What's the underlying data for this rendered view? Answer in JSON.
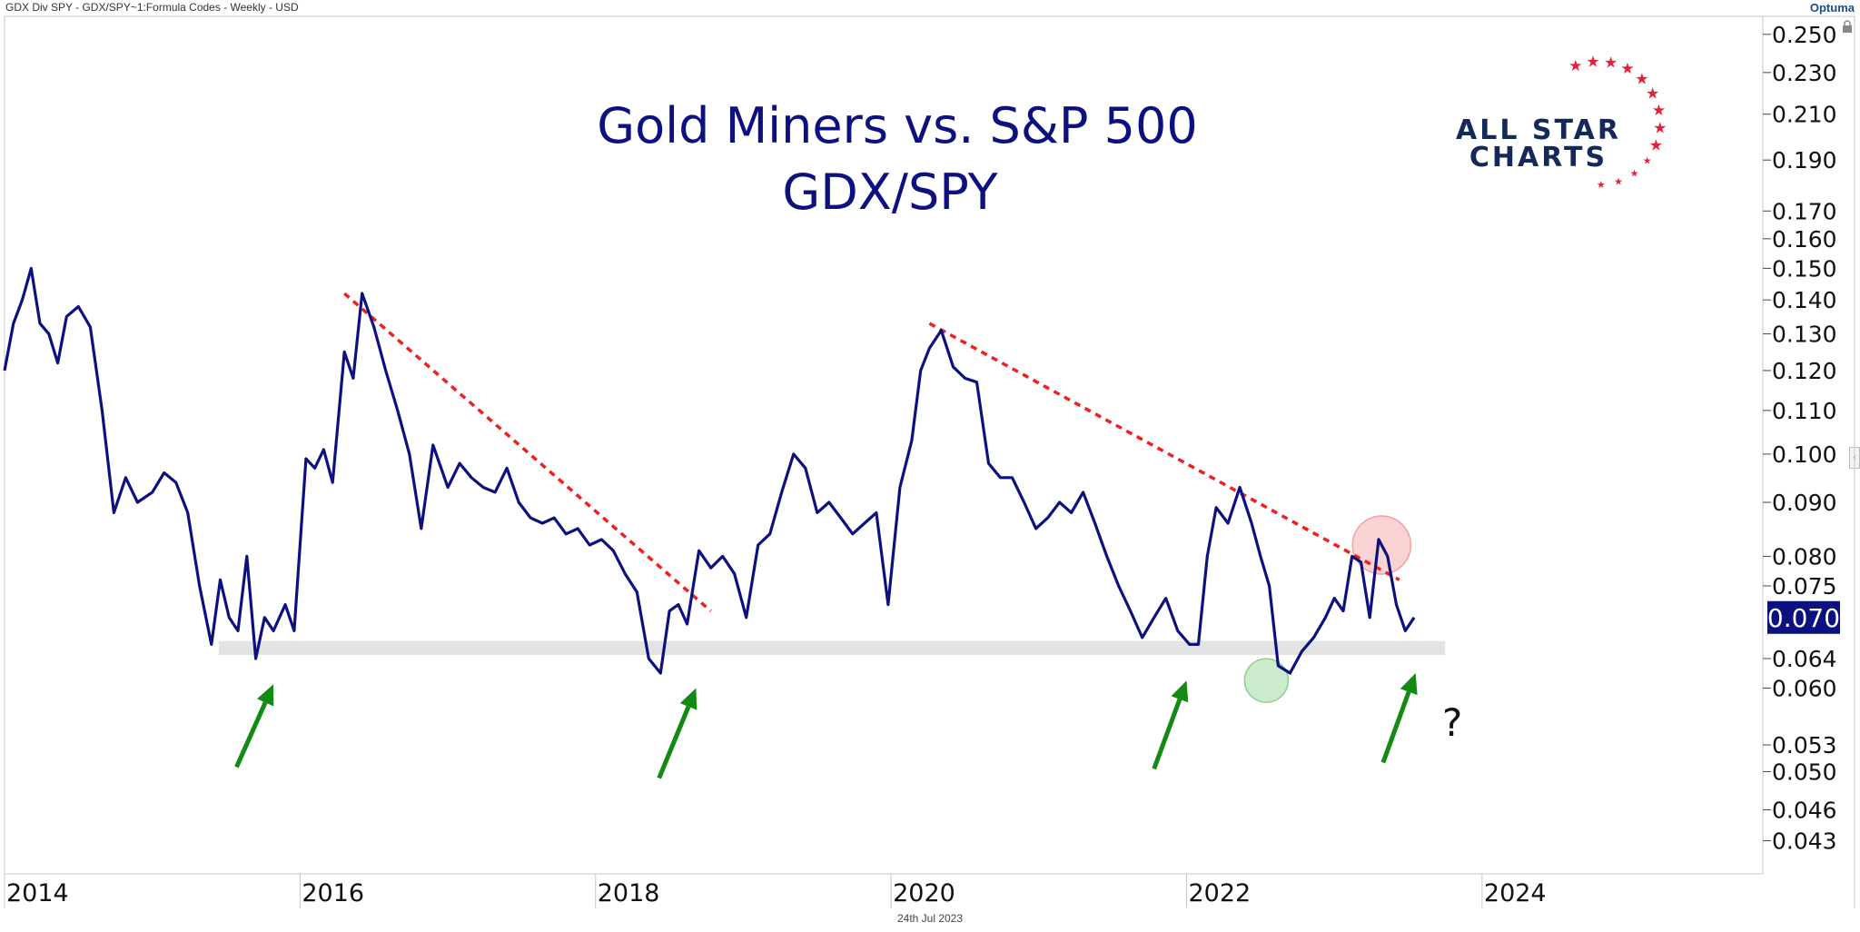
{
  "header": {
    "symbol_info": "GDX Div SPY - GDX/SPY~1:Formula Codes - Weekly - USD",
    "brand": "Optuma"
  },
  "footer": {
    "date": "24th Jul 2023"
  },
  "logo": {
    "line1": "ALL STAR",
    "line2": "CHARTS"
  },
  "annotation": {
    "question": "?"
  },
  "chart_data": {
    "type": "line",
    "title": "Gold Miners vs. S&P 500",
    "subtitle": "GDX/SPY",
    "yscale": "log",
    "ylim": [
      0.04,
      0.26
    ],
    "xlim": [
      2014.0,
      2025.9
    ],
    "y_ticks": [
      "0.250",
      "0.230",
      "0.210",
      "0.190",
      "0.170",
      "0.160",
      "0.150",
      "0.140",
      "0.130",
      "0.120",
      "0.110",
      "0.100",
      "0.090",
      "0.080",
      "0.075",
      "0.064",
      "0.060",
      "0.053",
      "0.050",
      "0.046",
      "0.043"
    ],
    "x_ticks": [
      "2014",
      "2016",
      "2018",
      "2020",
      "2022",
      "2024"
    ],
    "last_value": "0.070",
    "colors": {
      "line": "#0d1180",
      "trendline": "#f02020",
      "arrow": "#138a13",
      "support": "#e3e3e3",
      "last_value_bg": "#0d1180"
    },
    "series": [
      {
        "x": [
          2014.0,
          2014.06,
          2014.12,
          2014.18,
          2014.24,
          2014.3,
          2014.36,
          2014.42,
          2014.5,
          2014.58,
          2014.66,
          2014.74,
          2014.82,
          2014.9,
          2015.0,
          2015.08,
          2015.16,
          2015.24,
          2015.32,
          2015.4,
          2015.46,
          2015.52,
          2015.58,
          2015.64,
          2015.7,
          2015.76,
          2015.82,
          2015.9,
          2015.96,
          2016.04,
          2016.1,
          2016.16,
          2016.22,
          2016.3,
          2016.36,
          2016.42,
          2016.5,
          2016.58,
          2016.66,
          2016.74,
          2016.82,
          2016.9,
          2017.0,
          2017.08,
          2017.16,
          2017.24,
          2017.32,
          2017.4,
          2017.48,
          2017.56,
          2017.64,
          2017.72,
          2017.8,
          2017.88,
          2017.96,
          2018.04,
          2018.12,
          2018.2,
          2018.28,
          2018.36,
          2018.44,
          2018.5,
          2018.56,
          2018.62,
          2018.7,
          2018.78,
          2018.86,
          2018.94,
          2019.02,
          2019.1,
          2019.18,
          2019.26,
          2019.34,
          2019.42,
          2019.5,
          2019.58,
          2019.66,
          2019.74,
          2019.82,
          2019.9,
          2019.98,
          2020.06,
          2020.14,
          2020.2,
          2020.26,
          2020.34,
          2020.42,
          2020.5,
          2020.58,
          2020.66,
          2020.74,
          2020.82,
          2020.9,
          2020.98,
          2021.06,
          2021.14,
          2021.22,
          2021.3,
          2021.38,
          2021.46,
          2021.54,
          2021.62,
          2021.7,
          2021.78,
          2021.86,
          2021.94,
          2022.02,
          2022.08,
          2022.14,
          2022.2,
          2022.28,
          2022.36,
          2022.44,
          2022.5,
          2022.56,
          2022.62,
          2022.7,
          2022.78,
          2022.86,
          2022.94,
          2023.0,
          2023.06,
          2023.12,
          2023.18,
          2023.24,
          2023.3,
          2023.36,
          2023.42,
          2023.48,
          2023.54
        ],
        "y": [
          0.12,
          0.133,
          0.14,
          0.15,
          0.133,
          0.13,
          0.122,
          0.135,
          0.138,
          0.132,
          0.11,
          0.088,
          0.095,
          0.09,
          0.092,
          0.096,
          0.094,
          0.088,
          0.075,
          0.066,
          0.076,
          0.07,
          0.068,
          0.08,
          0.064,
          0.07,
          0.068,
          0.072,
          0.068,
          0.099,
          0.097,
          0.101,
          0.094,
          0.125,
          0.118,
          0.142,
          0.132,
          0.12,
          0.11,
          0.1,
          0.085,
          0.102,
          0.093,
          0.098,
          0.095,
          0.093,
          0.092,
          0.097,
          0.09,
          0.087,
          0.086,
          0.087,
          0.084,
          0.085,
          0.082,
          0.083,
          0.081,
          0.077,
          0.074,
          0.064,
          0.062,
          0.071,
          0.072,
          0.069,
          0.081,
          0.078,
          0.08,
          0.077,
          0.07,
          0.082,
          0.084,
          0.092,
          0.1,
          0.097,
          0.088,
          0.09,
          0.087,
          0.084,
          0.086,
          0.088,
          0.072,
          0.093,
          0.103,
          0.12,
          0.126,
          0.131,
          0.121,
          0.118,
          0.117,
          0.098,
          0.095,
          0.095,
          0.09,
          0.085,
          0.087,
          0.09,
          0.088,
          0.092,
          0.086,
          0.08,
          0.075,
          0.071,
          0.067,
          0.07,
          0.073,
          0.068,
          0.066,
          0.066,
          0.08,
          0.089,
          0.086,
          0.093,
          0.086,
          0.08,
          0.075,
          0.063,
          0.062,
          0.065,
          0.067,
          0.07,
          0.073,
          0.071,
          0.08,
          0.079,
          0.07,
          0.083,
          0.08,
          0.072,
          0.068,
          0.07
        ]
      }
    ],
    "trendlines": [
      {
        "from": {
          "x": 2016.3,
          "y": 0.142
        },
        "to": {
          "x": 2018.78,
          "y": 0.071
        }
      },
      {
        "from": {
          "x": 2020.26,
          "y": 0.133
        },
        "to": {
          "x": 2023.44,
          "y": 0.076
        }
      }
    ],
    "support_band": {
      "y0": 0.0645,
      "y1": 0.0665,
      "x0": 2015.45,
      "x1": 2023.75
    },
    "circles": [
      {
        "x": 2023.32,
        "y": 0.082,
        "color": "#f4a0a0"
      },
      {
        "x": 2022.54,
        "y": 0.061,
        "color": "#8fd08f"
      }
    ],
    "arrows": [
      {
        "from": {
          "x": 2015.57,
          "y": 0.0505
        },
        "to": {
          "x": 2015.82,
          "y": 0.0605
        }
      },
      {
        "from": {
          "x": 2018.43,
          "y": 0.0493
        },
        "to": {
          "x": 2018.68,
          "y": 0.06
        }
      },
      {
        "from": {
          "x": 2021.78,
          "y": 0.0503
        },
        "to": {
          "x": 2022.0,
          "y": 0.061
        }
      },
      {
        "from": {
          "x": 2023.33,
          "y": 0.051
        },
        "to": {
          "x": 2023.55,
          "y": 0.062
        }
      }
    ]
  }
}
